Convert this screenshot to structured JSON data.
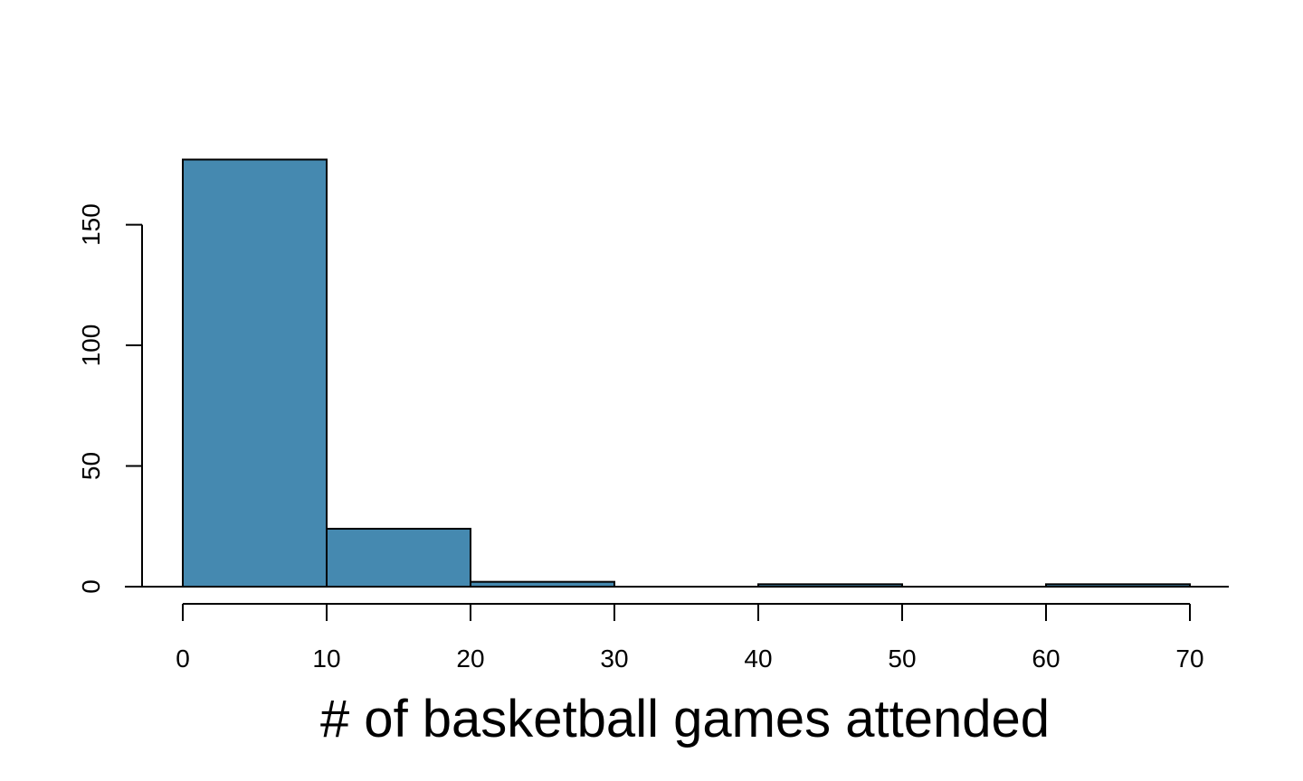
{
  "chart_data": {
    "type": "histogram",
    "title": "",
    "xlabel": "# of basketball games attended",
    "ylabel": "",
    "bins": [
      {
        "start": 0,
        "end": 10,
        "count": 177
      },
      {
        "start": 10,
        "end": 20,
        "count": 24
      },
      {
        "start": 20,
        "end": 30,
        "count": 2
      },
      {
        "start": 30,
        "end": 40,
        "count": 0
      },
      {
        "start": 40,
        "end": 50,
        "count": 1
      },
      {
        "start": 50,
        "end": 60,
        "count": 0
      },
      {
        "start": 60,
        "end": 70,
        "count": 1
      }
    ],
    "xlim": [
      0,
      70
    ],
    "ylim": [
      0,
      177
    ],
    "x_ticks": [
      "0",
      "10",
      "20",
      "30",
      "40",
      "50",
      "60",
      "70"
    ],
    "y_ticks": [
      "0",
      "50",
      "100",
      "150"
    ],
    "bar_color": "#4589b0",
    "grid": false,
    "legend": "none"
  }
}
